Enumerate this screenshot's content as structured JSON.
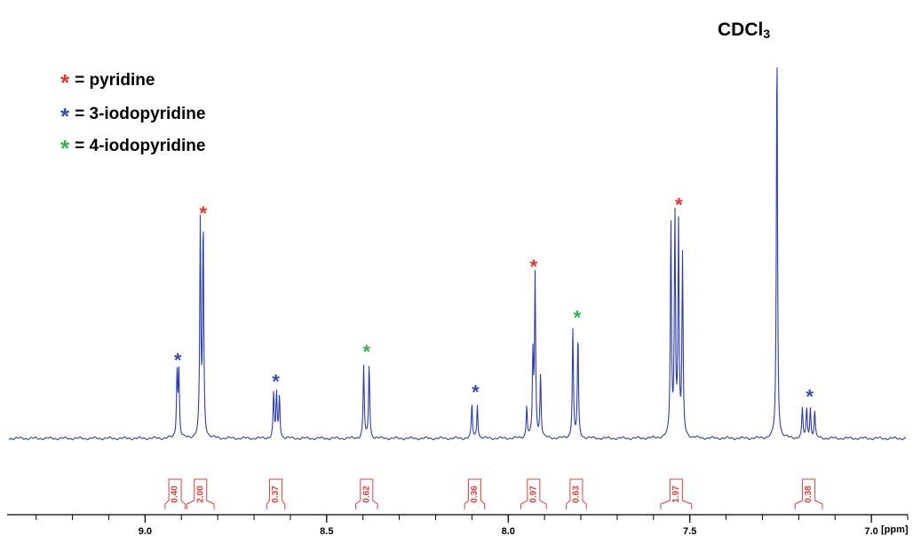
{
  "chart_data": {
    "type": "line",
    "title": "",
    "xlabel": "[ppm]",
    "ylabel": "",
    "x_reversed": true,
    "xlim": [
      9.38,
      6.9
    ],
    "x_ticks": [
      "9.0",
      "8.5",
      "8.0",
      "7.5",
      "7.0"
    ],
    "x_tick_values": [
      9.0,
      8.5,
      8.0,
      7.5,
      7.0
    ],
    "minor_tick_step": 0.1,
    "grid": false,
    "line_color": "#2e3ea8",
    "solvent_label": "CDCl3",
    "solvent_label_main": "CDCl",
    "solvent_label_sub": "3",
    "solvent_shift": 7.26,
    "legend": {
      "placement": "top-left",
      "entries": [
        {
          "symbol": "*",
          "label": "= pyridine",
          "color": "#e8322e"
        },
        {
          "symbol": "*",
          "label": "= 3-iodopyridine",
          "color": "#3c4aa8"
        },
        {
          "symbol": "*",
          "label": "= 4-iodopyridine",
          "color": "#2db34a"
        }
      ]
    },
    "peaks": [
      {
        "shift": 8.91,
        "lines": [
          8.912,
          8.907
        ],
        "heights": [
          0.31,
          0.31
        ],
        "marker_color": "#3c4aa8"
      },
      {
        "shift": 8.84,
        "lines": [
          8.848,
          8.84
        ],
        "heights": [
          1.0,
          1.0
        ],
        "marker_color": "#e8322e"
      },
      {
        "shift": 8.64,
        "lines": [
          8.646,
          8.638,
          8.63
        ],
        "heights": [
          0.21,
          0.21,
          0.2
        ],
        "marker_color": "#3c4aa8"
      },
      {
        "shift": 8.39,
        "lines": [
          8.398,
          8.383
        ],
        "heights": [
          0.34,
          0.35
        ],
        "marker_color": "#2db34a"
      },
      {
        "shift": 8.09,
        "lines": [
          8.1,
          8.085
        ],
        "heights": [
          0.16,
          0.16
        ],
        "marker_color": "#3c4aa8"
      },
      {
        "shift": 7.93,
        "lines": [
          7.949,
          7.932,
          7.926,
          7.911
        ],
        "heights": [
          0.15,
          0.38,
          0.75,
          0.3
        ],
        "marker_color": "#e8322e"
      },
      {
        "shift": 7.81,
        "lines": [
          7.822,
          7.808
        ],
        "heights": [
          0.51,
          0.48
        ],
        "marker_color": "#2db34a"
      },
      {
        "shift": 7.53,
        "lines": [
          7.552,
          7.541,
          7.531,
          7.52
        ],
        "heights": [
          1.0,
          1.04,
          0.98,
          0.84
        ],
        "marker_color": "#e8322e"
      },
      {
        "shift": 7.26,
        "lines": [
          7.26
        ],
        "heights": [
          1.86
        ],
        "marker_color": ""
      },
      {
        "shift": 7.17,
        "lines": [
          7.19,
          7.178,
          7.168,
          7.156
        ],
        "heights": [
          0.14,
          0.14,
          0.14,
          0.13
        ],
        "marker_color": "#3c4aa8"
      }
    ],
    "integrals": [
      {
        "from": 8.945,
        "to": 8.89,
        "value": "0.40"
      },
      {
        "from": 8.885,
        "to": 8.81,
        "value": "2.00"
      },
      {
        "from": 8.665,
        "to": 8.615,
        "value": "0.37"
      },
      {
        "from": 8.42,
        "to": 8.36,
        "value": "0.62"
      },
      {
        "from": 8.12,
        "to": 8.065,
        "value": "0.36"
      },
      {
        "from": 7.965,
        "to": 7.895,
        "value": "0.97"
      },
      {
        "from": 7.84,
        "to": 7.785,
        "value": "0.63"
      },
      {
        "from": 7.58,
        "to": 7.495,
        "value": "1.97"
      },
      {
        "from": 7.21,
        "to": 7.135,
        "value": "0.38"
      }
    ]
  }
}
